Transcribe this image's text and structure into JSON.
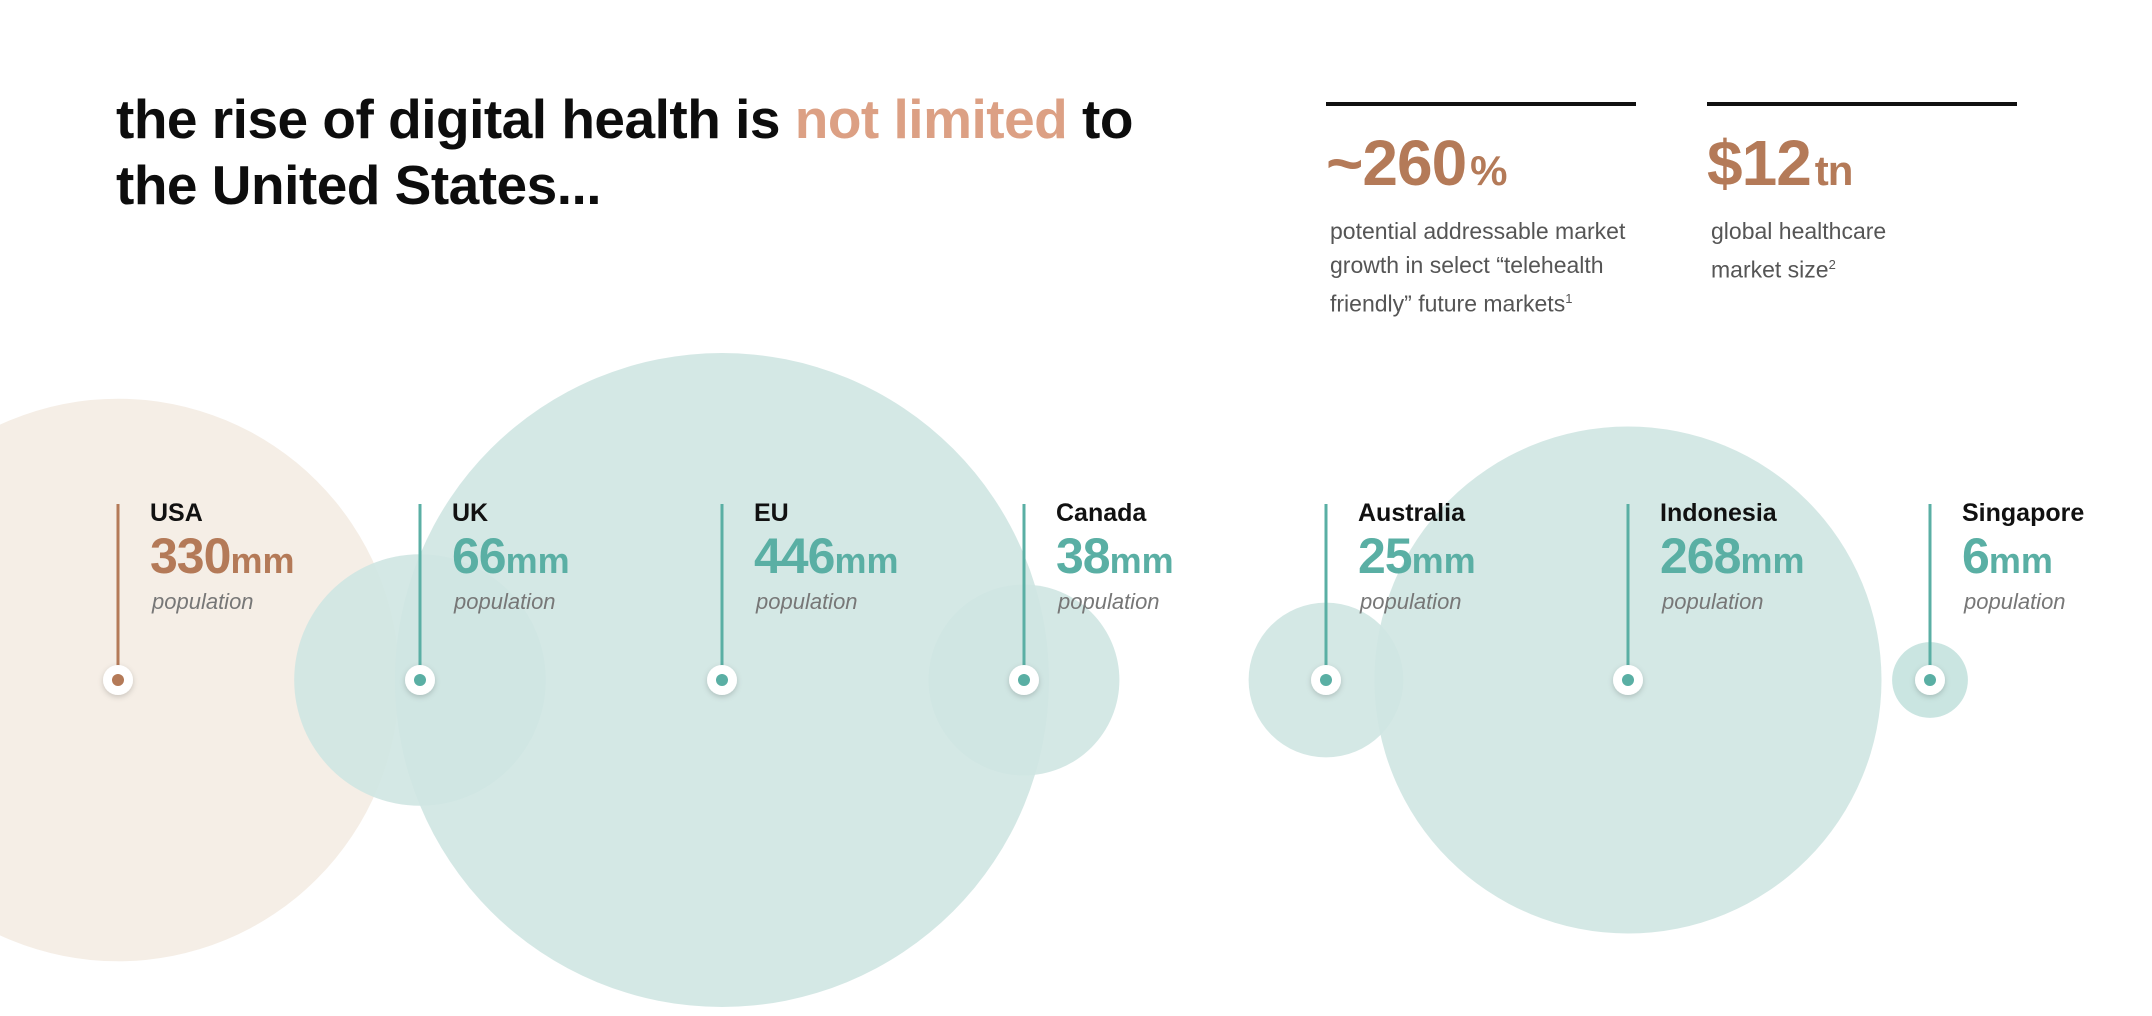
{
  "headline": {
    "before": "the rise of digital health is ",
    "accent": "not limited",
    "after": " to the United States..."
  },
  "stats": [
    {
      "value": "~260",
      "unit": "%",
      "description": "potential addressable market growth in select “telehealth friendly” future markets",
      "footnote": "1"
    },
    {
      "value": "$12",
      "unit": "tn",
      "description": "global healthcare market size",
      "footnote": "2"
    }
  ],
  "colors": {
    "brown_accent": "#b47a58",
    "headline_accent": "#dca084",
    "teal": "#5aafa4",
    "teal_bubble": "#cfe6e2",
    "tan_bubble": "#f5eee6"
  },
  "chart_data": {
    "type": "bubble",
    "title": "",
    "unit": "mm",
    "value_label": "population",
    "categories": [
      "USA",
      "UK",
      "EU",
      "Canada",
      "Australia",
      "Indonesia",
      "Singapore"
    ],
    "values": [
      330,
      66,
      446,
      38,
      25,
      268,
      6
    ],
    "series": [
      {
        "values": [
          330,
          66,
          446,
          38,
          25,
          268,
          6
        ],
        "highlight": [
          "USA"
        ]
      }
    ],
    "labels": {
      "USA": "330",
      "UK": "66",
      "EU": "446",
      "Canada": "38",
      "Australia": "25",
      "Indonesia": "268",
      "Singapore": "6"
    }
  }
}
